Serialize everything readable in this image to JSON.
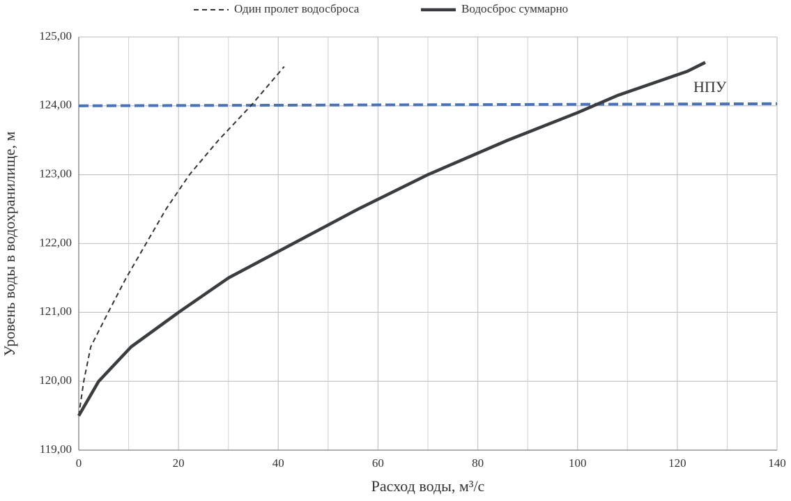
{
  "chart_data": {
    "type": "line",
    "xlabel": "Расход воды, м³/с",
    "ylabel": "Уровень воды в водохранилище, м",
    "xlim": [
      0,
      140
    ],
    "xticks": [
      0,
      20,
      40,
      60,
      80,
      100,
      120,
      140
    ],
    "xgrid": [
      10,
      30,
      50,
      70,
      90,
      110,
      130
    ],
    "ylim": [
      119,
      125
    ],
    "yticks": [
      {
        "value": 119,
        "label": "119,00"
      },
      {
        "value": 120,
        "label": "120,00"
      },
      {
        "value": 121,
        "label": "121,00"
      },
      {
        "value": 122,
        "label": "122,00"
      },
      {
        "value": 123,
        "label": "123,00"
      },
      {
        "value": 124,
        "label": "124,00"
      },
      {
        "value": 125,
        "label": "125,00"
      }
    ],
    "grid": true,
    "legend": "top",
    "series": [
      {
        "name": "Один пролет водосброса",
        "color": "#333333",
        "dash": true,
        "x": [
          0,
          1,
          2.4,
          5.9,
          9.5,
          13.5,
          17.5,
          22.2,
          28,
          34.5,
          41.2
        ],
        "values": [
          119.5,
          120,
          120.5,
          121,
          121.5,
          122,
          122.5,
          123,
          123.5,
          124,
          124.57
        ]
      },
      {
        "name": "Водосброс суммарно",
        "color": "#3a3d40",
        "dash": false,
        "x": [
          0,
          4,
          10.5,
          20,
          30,
          43,
          56,
          70,
          86,
          100,
          108,
          122,
          125.6
        ],
        "values": [
          119.5,
          120,
          120.5,
          121,
          121.5,
          122,
          122.5,
          123,
          123.5,
          123.9,
          124.15,
          124.5,
          124.63
        ]
      }
    ],
    "reference": {
      "label": "НПУ",
      "color": "#4472c4",
      "x": [
        0,
        140
      ],
      "values": [
        124.0,
        124.03
      ]
    }
  }
}
